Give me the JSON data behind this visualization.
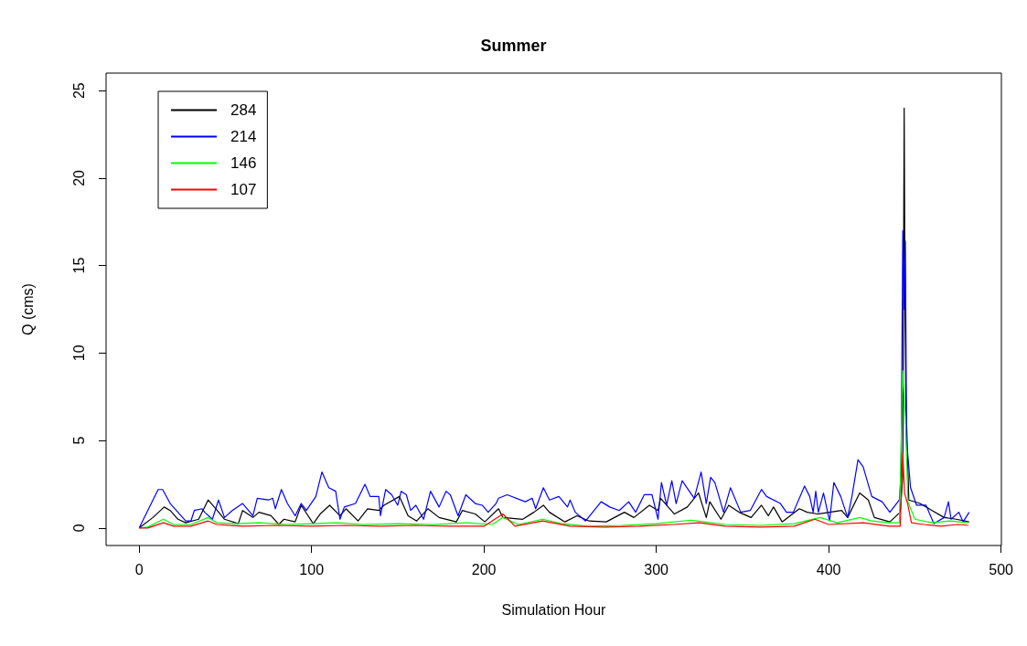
{
  "chart_data": {
    "type": "line",
    "title": "Summer",
    "xlabel": "Simulation Hour",
    "ylabel": "Q (cms)",
    "xlim": [
      -19.2,
      500.2
    ],
    "ylim": [
      -1,
      26
    ],
    "xticks": [
      0,
      100,
      200,
      300,
      400,
      500
    ],
    "yticks": [
      0,
      5,
      10,
      15,
      20,
      25
    ],
    "grid": false,
    "legend": "top left",
    "line_style": "solid",
    "marker": "none",
    "series": [
      {
        "name": "284",
        "color": "#000000",
        "x": [
          0,
          8,
          14.5,
          18,
          22.5,
          27,
          34.5,
          40,
          44.5,
          49.5,
          57.5,
          60,
          66,
          69.5,
          76.5,
          81,
          84,
          90.5,
          94,
          101,
          105,
          110.5,
          116.5,
          120,
          127,
          132.5,
          139,
          142,
          151,
          156,
          161,
          167.5,
          174,
          184,
          187.5,
          195,
          200.5,
          208.5,
          211,
          222.5,
          229,
          234.5,
          238,
          247,
          254,
          261,
          271,
          281.5,
          287,
          296,
          301,
          302.5,
          310.5,
          318,
          324.5,
          329,
          331,
          337.5,
          342,
          348,
          355,
          361,
          365,
          368,
          373,
          383,
          387.5,
          393.5,
          400.5,
          407.5,
          411,
          418,
          423,
          426.5,
          435.5,
          441.5,
          443,
          443.8,
          444.3,
          444.8,
          446.5,
          453,
          460,
          467,
          474,
          481.5
        ],
        "values": [
          0,
          0.6,
          1.2,
          1.0,
          0.5,
          0.3,
          0.5,
          1.6,
          1.1,
          0.5,
          0.25,
          1.0,
          0.6,
          0.9,
          0.7,
          0.2,
          0.5,
          0.35,
          1.3,
          0.25,
          0.8,
          1.3,
          0.7,
          1.1,
          0.4,
          1.1,
          1.0,
          1.3,
          1.8,
          0.7,
          0.4,
          1.1,
          0.6,
          0.35,
          1.0,
          0.8,
          0.35,
          1.1,
          0.6,
          0.5,
          0.9,
          1.3,
          0.9,
          0.35,
          0.7,
          0.4,
          0.35,
          0.9,
          0.6,
          1.3,
          1.0,
          1.7,
          0.8,
          1.2,
          2.0,
          0.6,
          1.5,
          0.5,
          1.3,
          0.9,
          0.6,
          1.3,
          0.7,
          1.2,
          0.35,
          1.1,
          0.9,
          0.8,
          0.9,
          1.0,
          0.6,
          2.0,
          1.6,
          0.6,
          0.35,
          0.9,
          3.0,
          24.0,
          12.5,
          7.4,
          1.6,
          1.4,
          1.0,
          0.6,
          0.5,
          0.35
        ]
      },
      {
        "name": "214",
        "color": "#0000ff",
        "x": [
          0,
          11,
          13.6,
          18,
          22.5,
          27,
          30,
          32,
          36.5,
          38,
          42.5,
          46,
          49.5,
          54,
          60,
          66,
          68.5,
          75,
          77.5,
          79,
          82.5,
          86,
          90.5,
          94,
          97,
          102.5,
          106,
          110,
          114,
          116.5,
          119,
          125.5,
          131,
          134,
          139,
          140,
          143,
          146.5,
          150,
          152,
          155,
          157.5,
          160.5,
          165,
          169,
          174,
          178,
          180.5,
          185,
          189.5,
          195,
          199,
          202.5,
          207,
          208.5,
          213.5,
          224,
          228,
          230,
          234.5,
          238,
          243.5,
          248.5,
          250,
          253,
          259,
          268,
          273,
          278.5,
          284,
          288,
          293,
          297.5,
          301,
          303,
          306,
          309,
          311.5,
          315,
          322,
          326,
          329,
          331.5,
          334,
          339,
          343,
          349,
          354.5,
          361,
          364,
          372,
          375.5,
          379.5,
          386,
          389,
          391,
          392.5,
          394,
          397,
          400.5,
          403,
          407,
          411,
          413.5,
          417,
          420,
          425,
          431,
          435.5,
          441,
          442,
          443,
          443.8,
          444.5,
          445.2,
          447.5,
          451,
          456.5,
          461,
          467,
          469.5,
          471,
          475.5,
          478,
          481.5
        ],
        "values": [
          0,
          2.2,
          2.2,
          1.4,
          0.9,
          0.4,
          0.4,
          1.0,
          1.1,
          0.9,
          0.5,
          1.6,
          0.6,
          1.0,
          1.4,
          0.7,
          1.7,
          1.6,
          1.7,
          1.1,
          2.2,
          1.4,
          0.7,
          1.4,
          1.0,
          1.8,
          3.2,
          2.3,
          2.1,
          0.5,
          1.2,
          1.4,
          2.5,
          1.8,
          1.8,
          0.7,
          2.2,
          1.9,
          1.3,
          2.1,
          1.9,
          1.0,
          1.3,
          0.5,
          2.1,
          1.2,
          2.1,
          1.9,
          0.7,
          1.9,
          1.4,
          1.3,
          0.9,
          1.4,
          1.7,
          1.9,
          1.5,
          1.7,
          1.1,
          2.3,
          1.6,
          1.8,
          1.2,
          1.6,
          0.9,
          0.4,
          1.5,
          1.2,
          1.0,
          1.5,
          0.9,
          1.9,
          1.9,
          0.5,
          2.6,
          1.3,
          2.7,
          1.4,
          2.7,
          1.7,
          3.2,
          1.4,
          2.9,
          2.6,
          0.9,
          2.3,
          0.9,
          1.0,
          2.2,
          1.8,
          1.4,
          0.9,
          0.9,
          2.4,
          1.8,
          0.9,
          2.1,
          0.9,
          2.0,
          0.4,
          2.6,
          1.8,
          0.6,
          1.8,
          3.9,
          3.5,
          1.8,
          1.5,
          0.9,
          1.6,
          3.0,
          17.0,
          12.5,
          16.4,
          5.0,
          2.3,
          1.3,
          1.3,
          0.25,
          0.6,
          1.5,
          0.5,
          0.9,
          0.35,
          0.9
        ]
      },
      {
        "name": "146",
        "color": "#00ff00",
        "x": [
          0,
          5,
          14,
          20,
          30,
          40,
          45,
          55,
          70,
          85,
          100,
          115,
          130,
          150,
          170,
          190,
          205,
          211,
          220,
          234,
          245,
          260,
          280,
          300,
          320,
          340,
          360,
          380,
          395,
          405,
          418,
          425,
          435,
          441,
          443,
          444.5,
          446,
          450,
          460,
          470,
          481
        ],
        "values": [
          0,
          0.05,
          0.5,
          0.2,
          0.2,
          0.6,
          0.3,
          0.25,
          0.3,
          0.2,
          0.25,
          0.3,
          0.2,
          0.25,
          0.2,
          0.3,
          0.2,
          0.6,
          0.2,
          0.5,
          0.25,
          0.1,
          0.15,
          0.25,
          0.45,
          0.2,
          0.15,
          0.25,
          0.6,
          0.3,
          0.6,
          0.4,
          0.3,
          0.3,
          9.0,
          6.2,
          1.5,
          0.5,
          0.3,
          0.4,
          0.3
        ]
      },
      {
        "name": "107",
        "color": "#ff0000",
        "x": [
          0,
          5,
          14,
          20,
          30,
          40,
          45,
          60,
          80,
          100,
          120,
          140,
          160,
          180,
          200,
          211,
          218,
          234,
          250,
          270,
          290,
          310,
          325,
          340,
          360,
          380,
          392,
          400,
          420,
          435,
          441.5,
          443,
          444,
          446,
          448,
          455,
          465,
          475,
          481
        ],
        "values": [
          0,
          0,
          0.3,
          0.1,
          0.1,
          0.4,
          0.2,
          0.1,
          0.15,
          0.1,
          0.15,
          0.1,
          0.15,
          0.1,
          0.1,
          0.8,
          0.1,
          0.4,
          0.1,
          0.05,
          0.1,
          0.2,
          0.3,
          0.1,
          0.05,
          0.1,
          0.5,
          0.2,
          0.3,
          0.1,
          0.1,
          4.3,
          2.0,
          1.3,
          0.3,
          0.2,
          0.1,
          0.2,
          0.15
        ]
      }
    ]
  }
}
